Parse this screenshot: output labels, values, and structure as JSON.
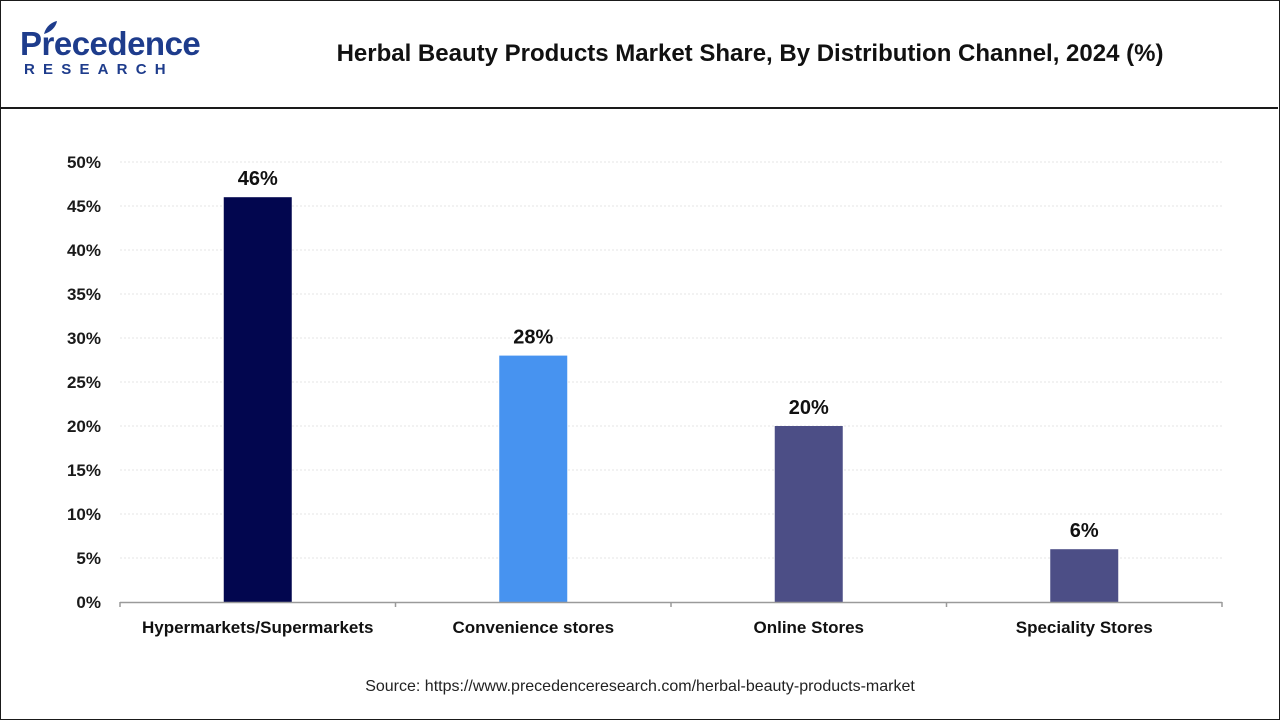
{
  "header": {
    "logo_main": "Precedence",
    "logo_sub": "RESEARCH",
    "title": "Herbal Beauty Products Market Share, By Distribution Channel, 2024 (%)"
  },
  "footer": {
    "source": "Source: https://www.precedenceresearch.com/herbal-beauty-products-market"
  },
  "colors": {
    "brand": "#1e3c8c",
    "bar_colors": [
      "#02064f",
      "#4793f0",
      "#4c4e86",
      "#4c4e86"
    ]
  },
  "chart_data": {
    "type": "bar",
    "title": "Herbal Beauty Products Market Share, By Distribution Channel, 2024 (%)",
    "xlabel": "",
    "ylabel": "",
    "categories": [
      "Hypermarkets/Supermarkets",
      "Convenience stores",
      "Online Stores",
      "Speciality Stores"
    ],
    "values": [
      46,
      28,
      20,
      6
    ],
    "data_labels": [
      "46%",
      "28%",
      "20%",
      "6%"
    ],
    "ylim": [
      0,
      50
    ],
    "yticks": [
      0,
      5,
      10,
      15,
      20,
      25,
      30,
      35,
      40,
      45,
      50
    ],
    "ytick_labels": [
      "0%",
      "5%",
      "10%",
      "15%",
      "20%",
      "25%",
      "30%",
      "35%",
      "40%",
      "45%",
      "50%"
    ],
    "grid": true,
    "legend": "none"
  }
}
